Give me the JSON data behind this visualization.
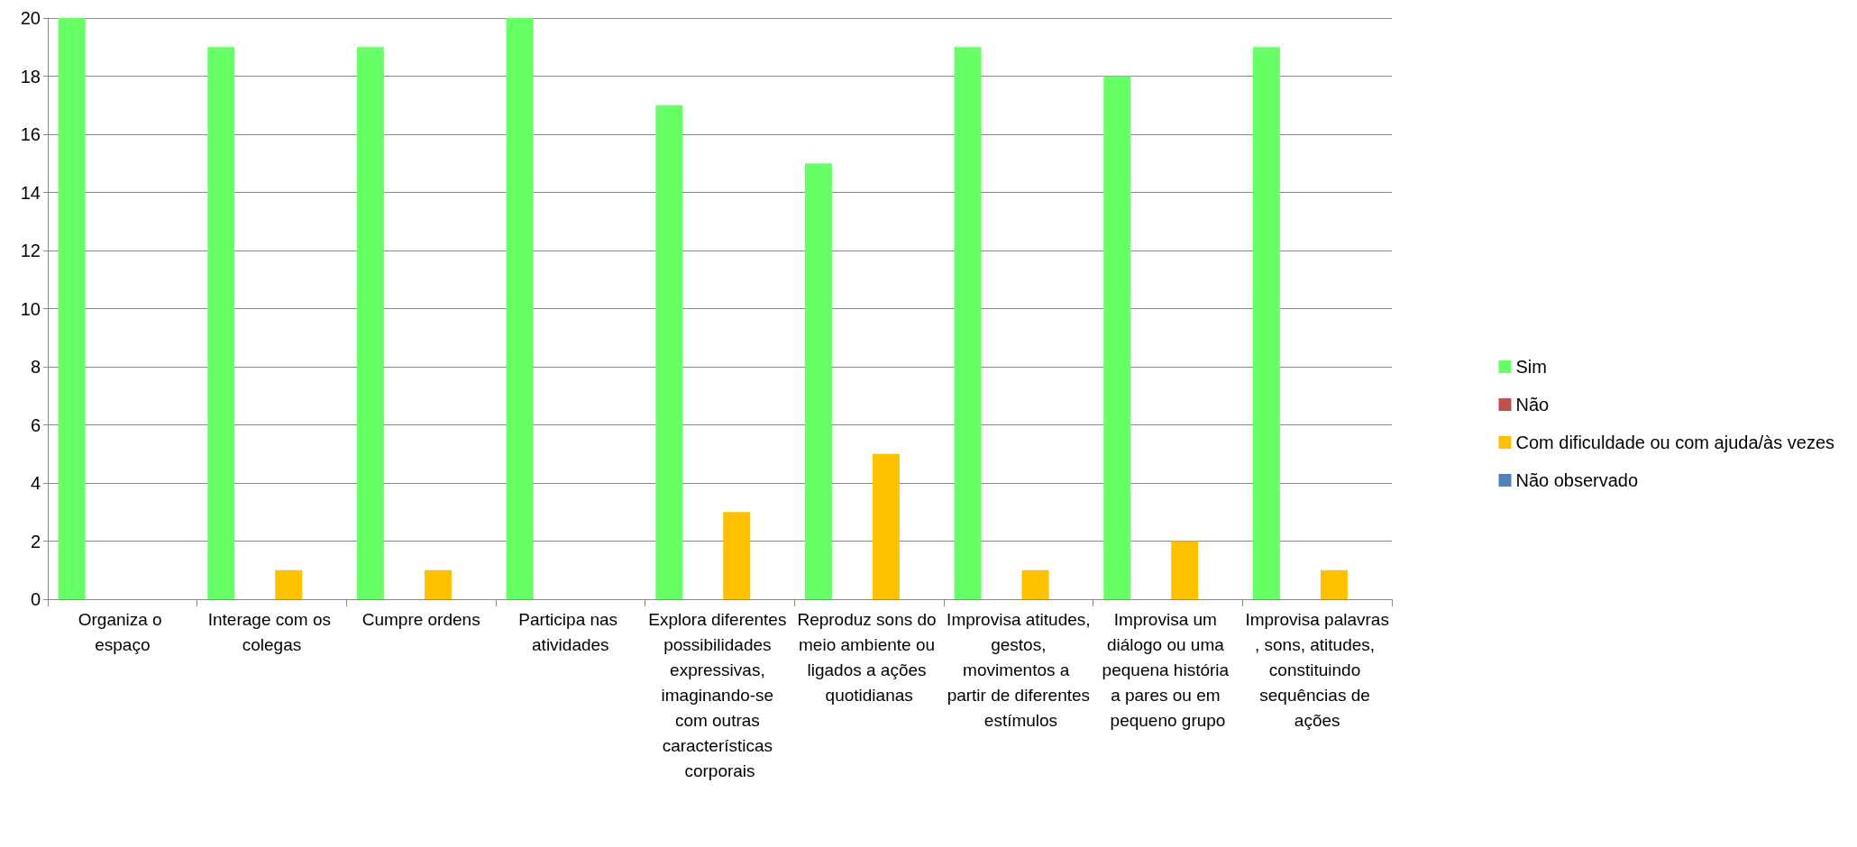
{
  "chart_data": {
    "type": "bar",
    "categories": [
      "Organiza o espaço",
      "Interage com os colegas",
      "Cumpre ordens",
      "Participa nas atividades",
      "Explora diferentes possibilidades expressivas, imaginando-se com outras características corporais",
      "Reproduz sons do meio ambiente ou ligados a ações quotidianas",
      "Improvisa atitudes, gestos, movimentos a partir de diferentes estímulos",
      "Improvisa um diálogo ou uma pequena história a pares ou em pequeno grupo",
      "Improvisa palavras, sons, atitudes, constituindo sequências de ações"
    ],
    "series": [
      {
        "name": "Sim",
        "color": "#66ff66",
        "values": [
          20,
          19,
          19,
          20,
          17,
          15,
          19,
          18,
          19
        ]
      },
      {
        "name": "Não",
        "color": "#c0504d",
        "values": [
          0,
          0,
          0,
          0,
          0,
          0,
          0,
          0,
          0
        ]
      },
      {
        "name": "Com dificuldade ou com ajuda/às vezes",
        "color": "#ffc000",
        "values": [
          0,
          1,
          1,
          0,
          3,
          5,
          1,
          2,
          1
        ]
      },
      {
        "name": "Não observado",
        "color": "#4f81bd",
        "values": [
          0,
          0,
          0,
          0,
          0,
          0,
          0,
          0,
          0
        ]
      }
    ],
    "ylim": [
      0,
      20
    ],
    "yticks": [
      0,
      2,
      4,
      6,
      8,
      10,
      12,
      14,
      16,
      18,
      20
    ],
    "grid": "y",
    "legend": "right"
  }
}
